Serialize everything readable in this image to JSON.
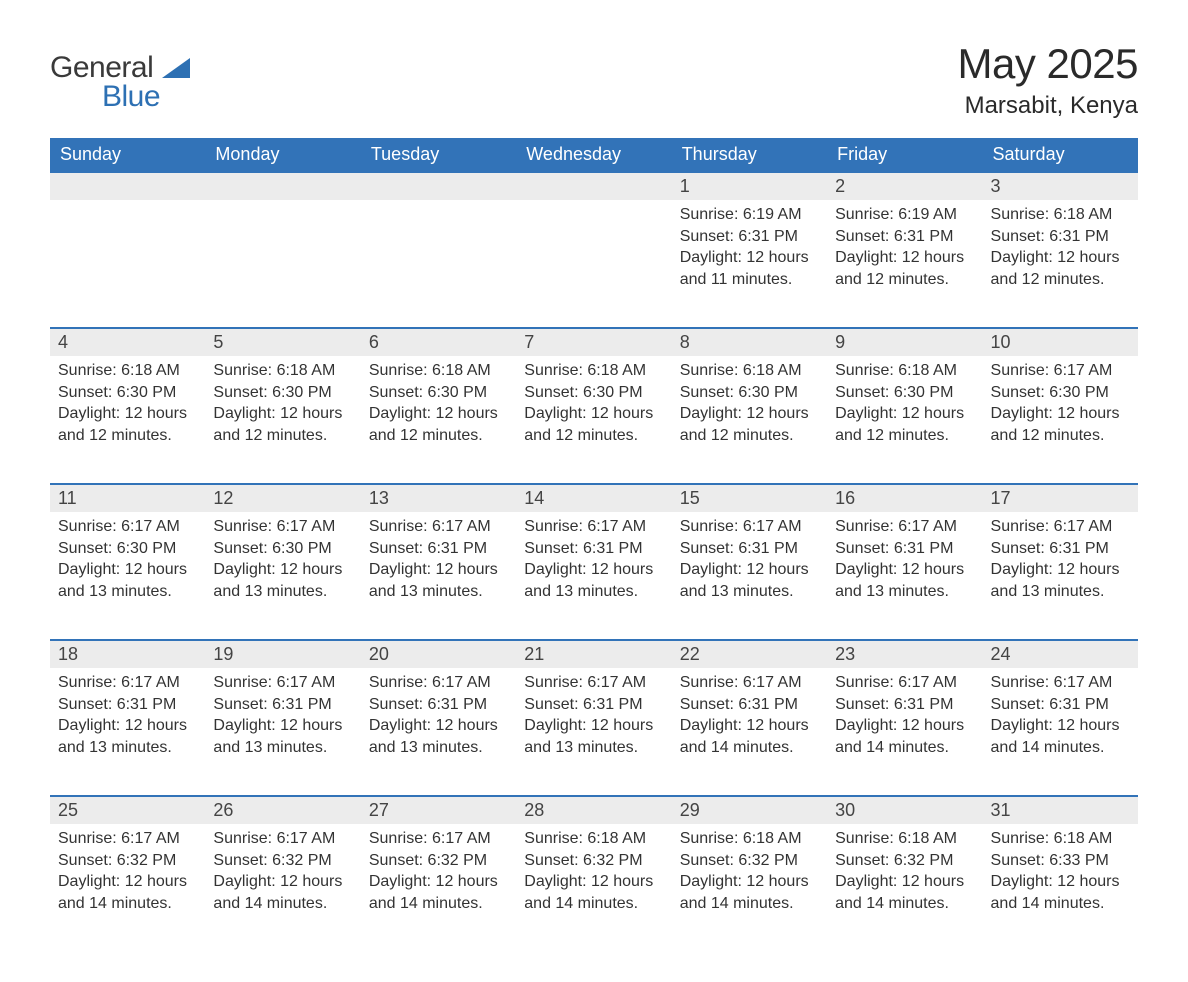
{
  "logo": {
    "word1": "General",
    "word2": "Blue",
    "tri_color": "#2d70b3"
  },
  "title": "May 2025",
  "location": "Marsabit, Kenya",
  "colors": {
    "header_bg": "#3273b8",
    "header_text": "#ffffff",
    "row_separator": "#3273b8",
    "daynum_bg": "#ececec",
    "text": "#333333",
    "page_bg": "#ffffff"
  },
  "day_headers": [
    "Sunday",
    "Monday",
    "Tuesday",
    "Wednesday",
    "Thursday",
    "Friday",
    "Saturday"
  ],
  "labels": {
    "sunrise": "Sunrise:",
    "sunset": "Sunset:",
    "daylight": "Daylight:"
  },
  "weeks": [
    [
      null,
      null,
      null,
      null,
      {
        "n": "1",
        "sunrise": "6:19 AM",
        "sunset": "6:31 PM",
        "daylight": "12 hours and 11 minutes."
      },
      {
        "n": "2",
        "sunrise": "6:19 AM",
        "sunset": "6:31 PM",
        "daylight": "12 hours and 12 minutes."
      },
      {
        "n": "3",
        "sunrise": "6:18 AM",
        "sunset": "6:31 PM",
        "daylight": "12 hours and 12 minutes."
      }
    ],
    [
      {
        "n": "4",
        "sunrise": "6:18 AM",
        "sunset": "6:30 PM",
        "daylight": "12 hours and 12 minutes."
      },
      {
        "n": "5",
        "sunrise": "6:18 AM",
        "sunset": "6:30 PM",
        "daylight": "12 hours and 12 minutes."
      },
      {
        "n": "6",
        "sunrise": "6:18 AM",
        "sunset": "6:30 PM",
        "daylight": "12 hours and 12 minutes."
      },
      {
        "n": "7",
        "sunrise": "6:18 AM",
        "sunset": "6:30 PM",
        "daylight": "12 hours and 12 minutes."
      },
      {
        "n": "8",
        "sunrise": "6:18 AM",
        "sunset": "6:30 PM",
        "daylight": "12 hours and 12 minutes."
      },
      {
        "n": "9",
        "sunrise": "6:18 AM",
        "sunset": "6:30 PM",
        "daylight": "12 hours and 12 minutes."
      },
      {
        "n": "10",
        "sunrise": "6:17 AM",
        "sunset": "6:30 PM",
        "daylight": "12 hours and 12 minutes."
      }
    ],
    [
      {
        "n": "11",
        "sunrise": "6:17 AM",
        "sunset": "6:30 PM",
        "daylight": "12 hours and 13 minutes."
      },
      {
        "n": "12",
        "sunrise": "6:17 AM",
        "sunset": "6:30 PM",
        "daylight": "12 hours and 13 minutes."
      },
      {
        "n": "13",
        "sunrise": "6:17 AM",
        "sunset": "6:31 PM",
        "daylight": "12 hours and 13 minutes."
      },
      {
        "n": "14",
        "sunrise": "6:17 AM",
        "sunset": "6:31 PM",
        "daylight": "12 hours and 13 minutes."
      },
      {
        "n": "15",
        "sunrise": "6:17 AM",
        "sunset": "6:31 PM",
        "daylight": "12 hours and 13 minutes."
      },
      {
        "n": "16",
        "sunrise": "6:17 AM",
        "sunset": "6:31 PM",
        "daylight": "12 hours and 13 minutes."
      },
      {
        "n": "17",
        "sunrise": "6:17 AM",
        "sunset": "6:31 PM",
        "daylight": "12 hours and 13 minutes."
      }
    ],
    [
      {
        "n": "18",
        "sunrise": "6:17 AM",
        "sunset": "6:31 PM",
        "daylight": "12 hours and 13 minutes."
      },
      {
        "n": "19",
        "sunrise": "6:17 AM",
        "sunset": "6:31 PM",
        "daylight": "12 hours and 13 minutes."
      },
      {
        "n": "20",
        "sunrise": "6:17 AM",
        "sunset": "6:31 PM",
        "daylight": "12 hours and 13 minutes."
      },
      {
        "n": "21",
        "sunrise": "6:17 AM",
        "sunset": "6:31 PM",
        "daylight": "12 hours and 13 minutes."
      },
      {
        "n": "22",
        "sunrise": "6:17 AM",
        "sunset": "6:31 PM",
        "daylight": "12 hours and 14 minutes."
      },
      {
        "n": "23",
        "sunrise": "6:17 AM",
        "sunset": "6:31 PM",
        "daylight": "12 hours and 14 minutes."
      },
      {
        "n": "24",
        "sunrise": "6:17 AM",
        "sunset": "6:31 PM",
        "daylight": "12 hours and 14 minutes."
      }
    ],
    [
      {
        "n": "25",
        "sunrise": "6:17 AM",
        "sunset": "6:32 PM",
        "daylight": "12 hours and 14 minutes."
      },
      {
        "n": "26",
        "sunrise": "6:17 AM",
        "sunset": "6:32 PM",
        "daylight": "12 hours and 14 minutes."
      },
      {
        "n": "27",
        "sunrise": "6:17 AM",
        "sunset": "6:32 PM",
        "daylight": "12 hours and 14 minutes."
      },
      {
        "n": "28",
        "sunrise": "6:18 AM",
        "sunset": "6:32 PM",
        "daylight": "12 hours and 14 minutes."
      },
      {
        "n": "29",
        "sunrise": "6:18 AM",
        "sunset": "6:32 PM",
        "daylight": "12 hours and 14 minutes."
      },
      {
        "n": "30",
        "sunrise": "6:18 AM",
        "sunset": "6:32 PM",
        "daylight": "12 hours and 14 minutes."
      },
      {
        "n": "31",
        "sunrise": "6:18 AM",
        "sunset": "6:33 PM",
        "daylight": "12 hours and 14 minutes."
      }
    ]
  ]
}
